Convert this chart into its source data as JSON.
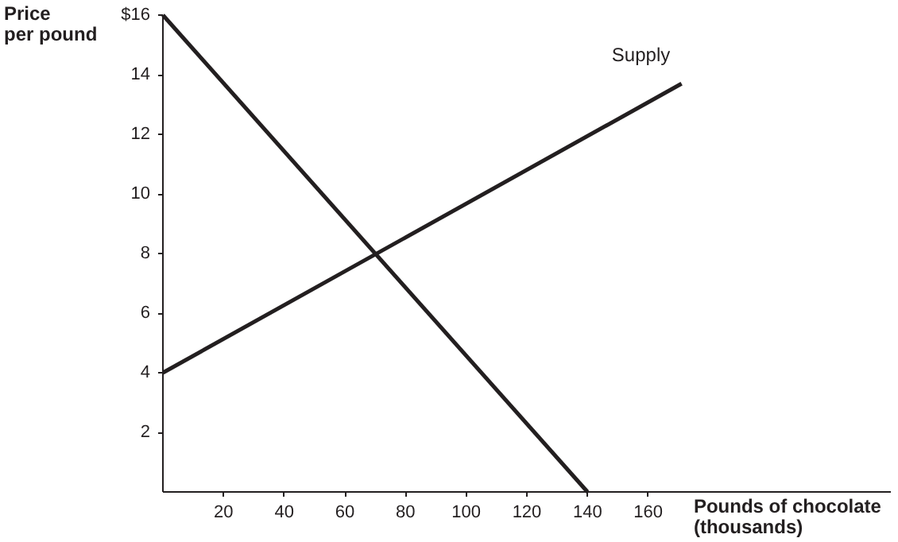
{
  "chart_data": {
    "type": "line",
    "xlabel": "Pounds of chocolate\n(thousands)",
    "ylabel": "Price\nper pound",
    "series": [
      {
        "name": "Supply",
        "color": "#231f20",
        "x": [
          0,
          171
        ],
        "values": [
          4,
          13.7
        ]
      },
      {
        "color": "#231f20",
        "x": [
          0,
          140
        ],
        "values": [
          16,
          0
        ]
      }
    ],
    "xlim": [
      0,
      240
    ],
    "ylim": [
      0,
      16
    ],
    "xticks": [
      20,
      40,
      60,
      80,
      100,
      120,
      140,
      160
    ],
    "yticks": [
      2,
      4,
      6,
      8,
      10,
      12,
      14,
      {
        "value": 16,
        "label": "$16"
      }
    ],
    "grid": false,
    "legend": false,
    "marker": "none",
    "line_style": "solid"
  }
}
